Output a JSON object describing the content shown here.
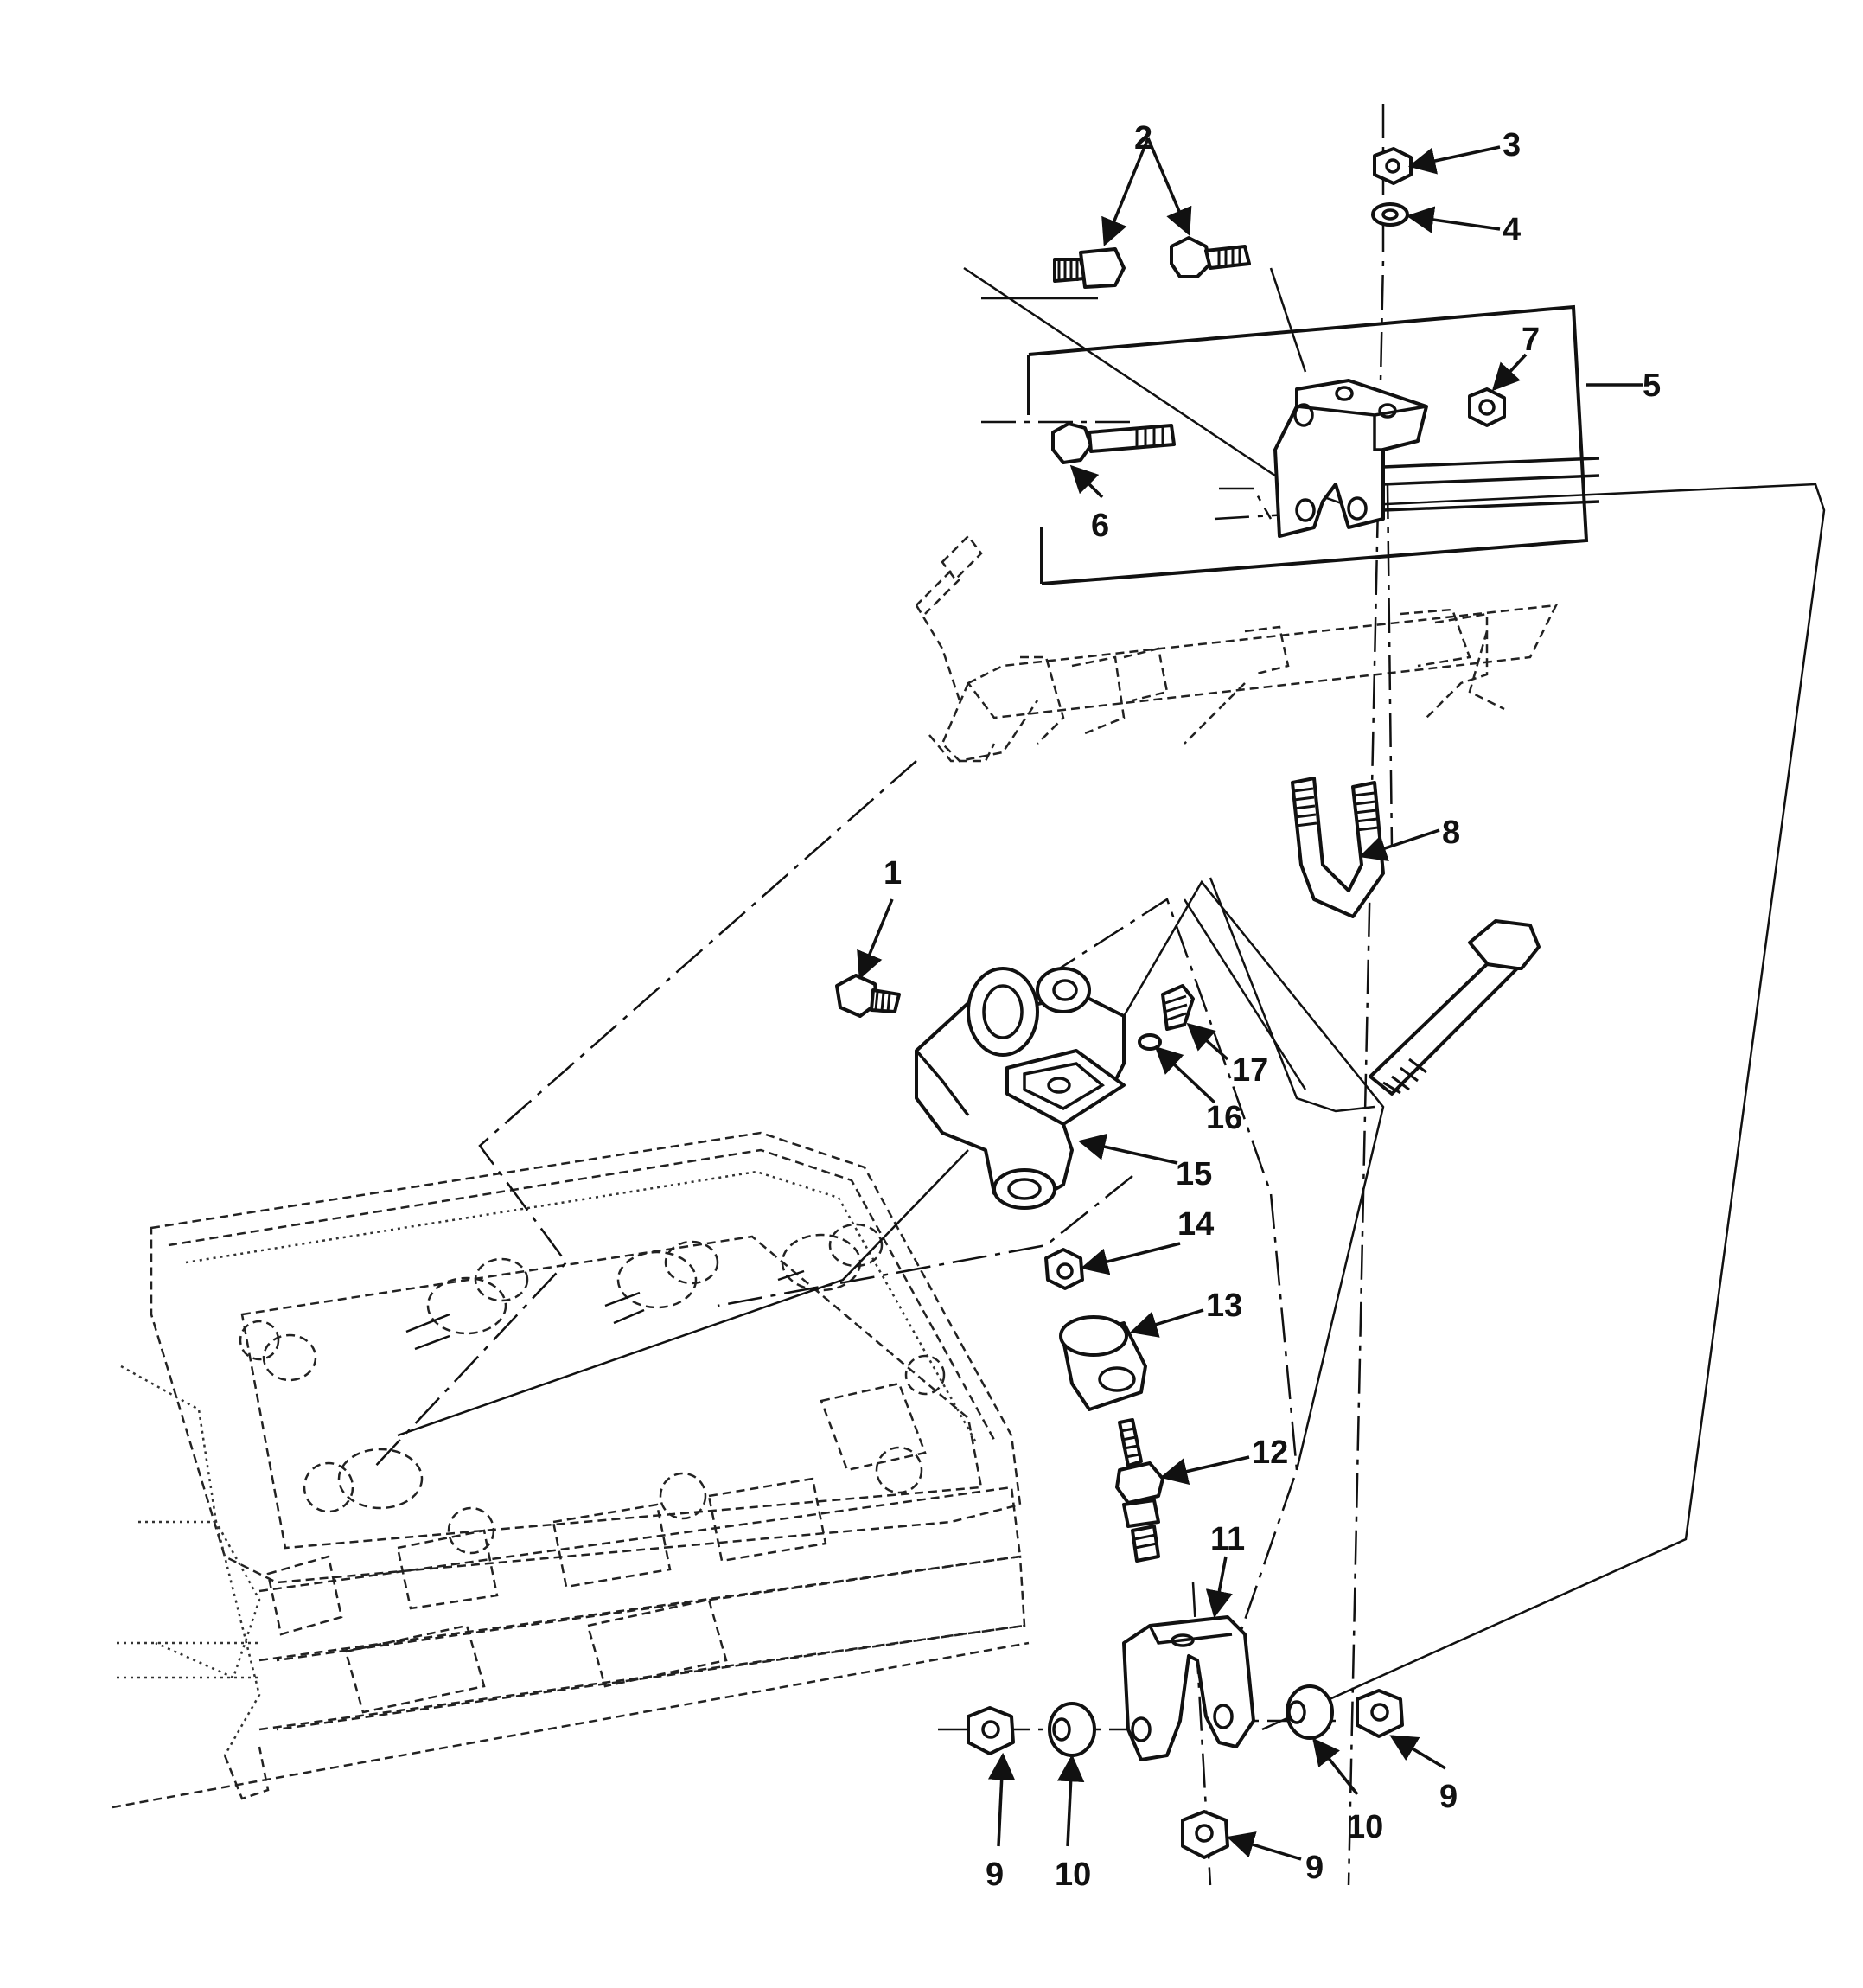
{
  "diagram": {
    "callouts": [
      {
        "id": "1",
        "label": "1"
      },
      {
        "id": "2",
        "label": "2"
      },
      {
        "id": "3",
        "label": "3"
      },
      {
        "id": "4",
        "label": "4"
      },
      {
        "id": "5",
        "label": "5"
      },
      {
        "id": "6",
        "label": "6"
      },
      {
        "id": "7",
        "label": "7"
      },
      {
        "id": "8",
        "label": "8"
      },
      {
        "id": "9a",
        "label": "9"
      },
      {
        "id": "9b",
        "label": "9"
      },
      {
        "id": "9c",
        "label": "9"
      },
      {
        "id": "10a",
        "label": "10"
      },
      {
        "id": "10b",
        "label": "10"
      },
      {
        "id": "11",
        "label": "11"
      },
      {
        "id": "12",
        "label": "12"
      },
      {
        "id": "13",
        "label": "13"
      },
      {
        "id": "14",
        "label": "14"
      },
      {
        "id": "15",
        "label": "15"
      },
      {
        "id": "16",
        "label": "16"
      },
      {
        "id": "17",
        "label": "17"
      }
    ]
  }
}
